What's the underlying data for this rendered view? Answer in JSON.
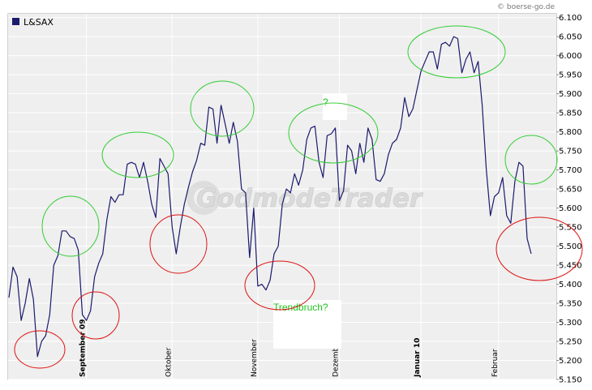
{
  "source_credit": "© boerse-go.de",
  "watermark": "GodmodeTrader",
  "colors": {
    "line": "#1a1a6e",
    "green_circle": "#33cc33",
    "red_circle": "#dd1111",
    "annotation_text": "#22c422",
    "plot_bg": "#efefef",
    "grid": "#ffffff"
  },
  "chart_data": {
    "type": "line",
    "title": "",
    "legend": {
      "entries": [
        "L&SAX"
      ],
      "placement": "top-left"
    },
    "xlabel": "",
    "ylabel": "",
    "ylim": [
      5150,
      6110
    ],
    "grid": true,
    "y_axis_side": "right",
    "y_ticks": [
      "6.100",
      "6.050",
      "6.000",
      "5.950",
      "5.900",
      "5.850",
      "5.800",
      "5.750",
      "5.700",
      "5.650",
      "5.600",
      "5.550",
      "5.500",
      "5.450",
      "5.400",
      "5.350",
      "5.300",
      "5.250",
      "5.200",
      "5.150"
    ],
    "y_tick_values": [
      6100,
      6050,
      6000,
      5950,
      5900,
      5850,
      5800,
      5750,
      5700,
      5650,
      5600,
      5550,
      5500,
      5450,
      5400,
      5350,
      5300,
      5250,
      5200,
      5150
    ],
    "x_ticks": [
      {
        "label": "September 09",
        "index": 19,
        "bold": true
      },
      {
        "label": "Oktober",
        "index": 40,
        "bold": false
      },
      {
        "label": "November",
        "index": 61,
        "bold": false
      },
      {
        "label": "Dezember",
        "index": 81,
        "bold": false
      },
      {
        "label": "Januar 10",
        "index": 101,
        "bold": true
      },
      {
        "label": "Februar",
        "index": 120,
        "bold": false
      }
    ],
    "series": [
      {
        "name": "L&SAX",
        "values": [
          5365,
          5445,
          5420,
          5305,
          5350,
          5415,
          5360,
          5210,
          5250,
          5265,
          5320,
          5450,
          5475,
          5540,
          5540,
          5525,
          5520,
          5490,
          5320,
          5305,
          5330,
          5420,
          5455,
          5480,
          5570,
          5630,
          5615,
          5635,
          5635,
          5715,
          5720,
          5715,
          5680,
          5720,
          5670,
          5610,
          5575,
          5730,
          5710,
          5690,
          5550,
          5480,
          5550,
          5610,
          5655,
          5695,
          5725,
          5770,
          5765,
          5865,
          5860,
          5770,
          5870,
          5820,
          5770,
          5825,
          5775,
          5650,
          5640,
          5470,
          5600,
          5395,
          5400,
          5385,
          5410,
          5480,
          5500,
          5610,
          5650,
          5640,
          5690,
          5660,
          5700,
          5780,
          5810,
          5815,
          5720,
          5680,
          5790,
          5795,
          5810,
          5620,
          5645,
          5765,
          5750,
          5690,
          5770,
          5720,
          5810,
          5780,
          5675,
          5670,
          5690,
          5740,
          5770,
          5780,
          5810,
          5890,
          5840,
          5860,
          5910,
          5960,
          5985,
          6010,
          6010,
          5965,
          6030,
          6035,
          6025,
          6050,
          6045,
          5955,
          5990,
          6010,
          5955,
          5985,
          5870,
          5700,
          5580,
          5630,
          5640,
          5680,
          5580,
          5560,
          5670,
          5720,
          5710,
          5520,
          5480
        ]
      }
    ],
    "annotations": [
      {
        "text": "?"
      },
      {
        "text": "Trendbruch?"
      }
    ]
  }
}
